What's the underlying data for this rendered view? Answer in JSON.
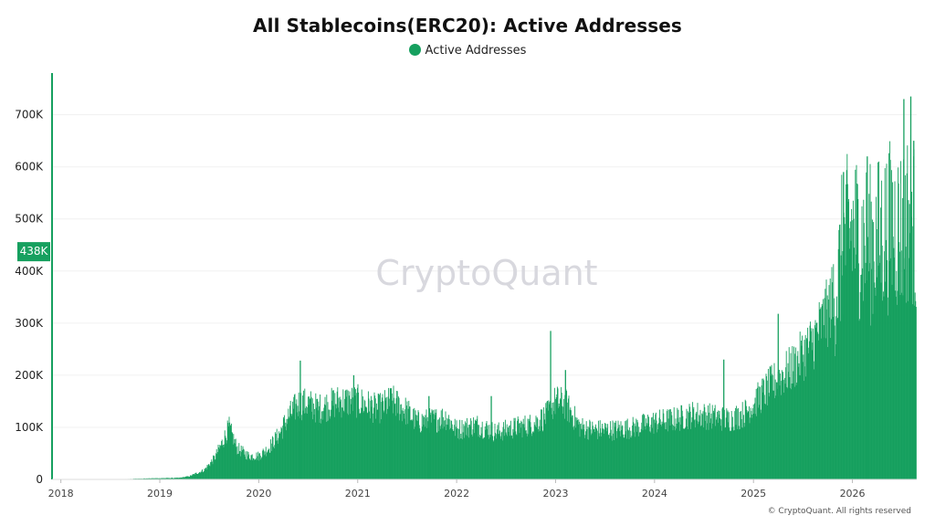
{
  "title": "All Stablecoins(ERC20): Active Addresses",
  "legend": {
    "label": "Active Addresses",
    "color": "#16a05f"
  },
  "watermark": "CryptoQuant",
  "copyright": "© CryptoQuant. All rights reserved",
  "current_value_label": "438K",
  "chart_data": {
    "type": "bar",
    "y_ticks": [
      "0",
      "100K",
      "200K",
      "300K",
      "400K",
      "500K",
      "600K",
      "700K"
    ],
    "x_ticks": [
      "2018",
      "2019",
      "2020",
      "2021",
      "2022",
      "2023",
      "2024",
      "2025",
      "2026"
    ],
    "ylim": [
      0,
      780000
    ],
    "xlim": [
      2017.92,
      2026.65
    ],
    "series": [
      {
        "name": "Active Addresses",
        "color": "#16a05f",
        "points": [
          [
            2017.92,
            0
          ],
          [
            2018.5,
            0
          ],
          [
            2018.9,
            2000
          ],
          [
            2019.2,
            3000
          ],
          [
            2019.3,
            6000
          ],
          [
            2019.45,
            18000
          ],
          [
            2019.55,
            40000
          ],
          [
            2019.63,
            70000
          ],
          [
            2019.7,
            100000
          ],
          [
            2019.78,
            60000
          ],
          [
            2019.9,
            45000
          ],
          [
            2020.0,
            45000
          ],
          [
            2020.1,
            60000
          ],
          [
            2020.2,
            85000
          ],
          [
            2020.3,
            120000
          ],
          [
            2020.4,
            145000
          ],
          [
            2020.5,
            145000
          ],
          [
            2020.6,
            135000
          ],
          [
            2020.8,
            150000
          ],
          [
            2021.0,
            150000
          ],
          [
            2021.2,
            135000
          ],
          [
            2021.35,
            150000
          ],
          [
            2021.5,
            130000
          ],
          [
            2021.6,
            110000
          ],
          [
            2021.8,
            115000
          ],
          [
            2021.9,
            120000
          ],
          [
            2022.0,
            95000
          ],
          [
            2022.2,
            105000
          ],
          [
            2022.4,
            90000
          ],
          [
            2022.6,
            100000
          ],
          [
            2022.75,
            105000
          ],
          [
            2022.9,
            120000
          ],
          [
            2023.0,
            150000
          ],
          [
            2023.1,
            145000
          ],
          [
            2023.25,
            100000
          ],
          [
            2023.4,
            95000
          ],
          [
            2023.6,
            95000
          ],
          [
            2023.8,
            100000
          ],
          [
            2024.0,
            110000
          ],
          [
            2024.2,
            115000
          ],
          [
            2024.4,
            125000
          ],
          [
            2024.6,
            120000
          ],
          [
            2024.75,
            115000
          ],
          [
            2024.9,
            125000
          ],
          [
            2025.0,
            145000
          ],
          [
            2025.2,
            185000
          ],
          [
            2025.4,
            215000
          ],
          [
            2025.6,
            265000
          ],
          [
            2025.75,
            320000
          ],
          [
            2025.85,
            370000
          ],
          [
            2025.9,
            450000
          ],
          [
            2026.0,
            480000
          ],
          [
            2026.1,
            460000
          ],
          [
            2026.2,
            450000
          ],
          [
            2026.3,
            470000
          ],
          [
            2026.4,
            490000
          ],
          [
            2026.5,
            480000
          ],
          [
            2026.6,
            520000
          ],
          [
            2026.65,
            438000
          ]
        ],
        "spikes": [
          [
            2020.42,
            228000
          ],
          [
            2020.96,
            200000
          ],
          [
            2021.33,
            175000
          ],
          [
            2021.72,
            160000
          ],
          [
            2022.35,
            160000
          ],
          [
            2022.95,
            285000
          ],
          [
            2023.1,
            210000
          ],
          [
            2024.7,
            230000
          ],
          [
            2025.25,
            318000
          ],
          [
            2025.72,
            348000
          ],
          [
            2025.91,
            590000
          ],
          [
            2026.15,
            620000
          ],
          [
            2026.52,
            730000
          ],
          [
            2026.59,
            735000
          ],
          [
            2026.62,
            650000
          ]
        ]
      }
    ],
    "grid": true
  }
}
